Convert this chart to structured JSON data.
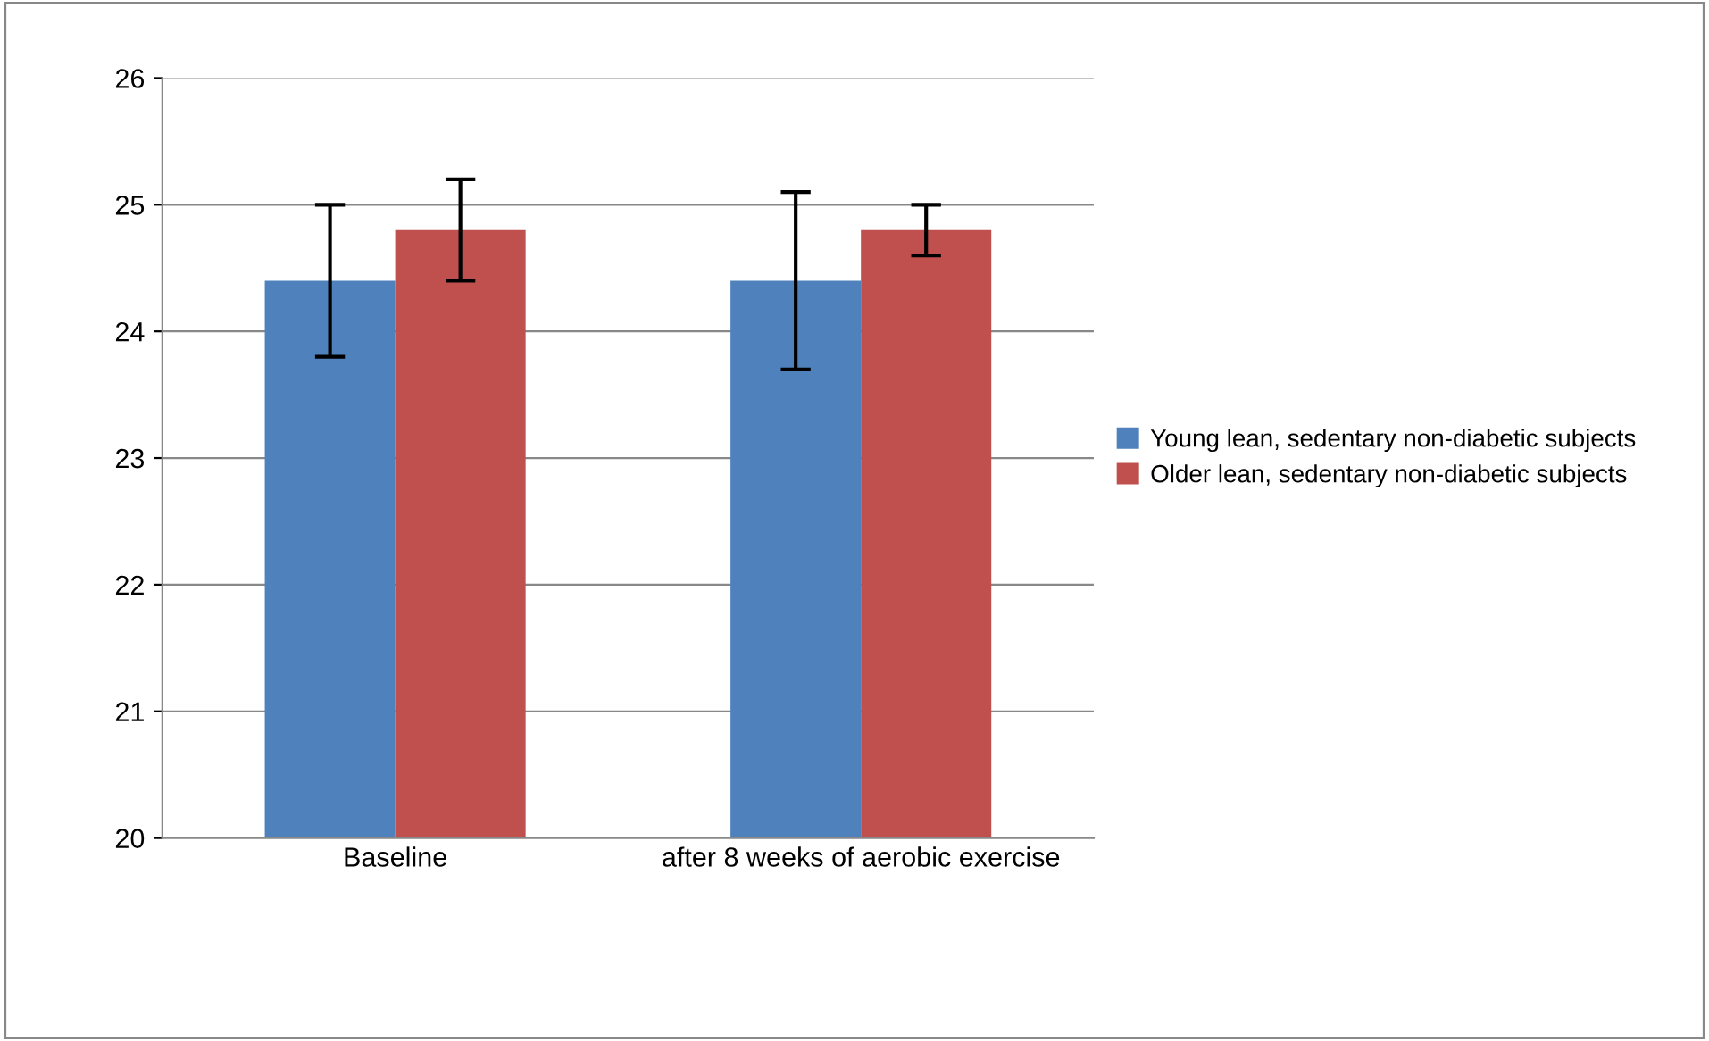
{
  "chart_data": {
    "type": "bar",
    "categories": [
      "Baseline",
      "after 8 weeks of aerobic exercise"
    ],
    "series": [
      {
        "name": "Young lean, sedentary non-diabetic subjects",
        "color": "#4f81bd",
        "values": [
          24.4,
          24.4
        ],
        "errors": [
          0.6,
          0.7
        ]
      },
      {
        "name": "Older lean, sedentary non-diabetic subjects",
        "color": "#c0504d",
        "values": [
          24.8,
          24.8
        ],
        "errors": [
          0.4,
          0.2
        ]
      }
    ],
    "ylim": [
      20,
      26
    ],
    "yticks": [
      20,
      21,
      22,
      23,
      24,
      25,
      26
    ],
    "grid": "y",
    "legend": "right"
  }
}
